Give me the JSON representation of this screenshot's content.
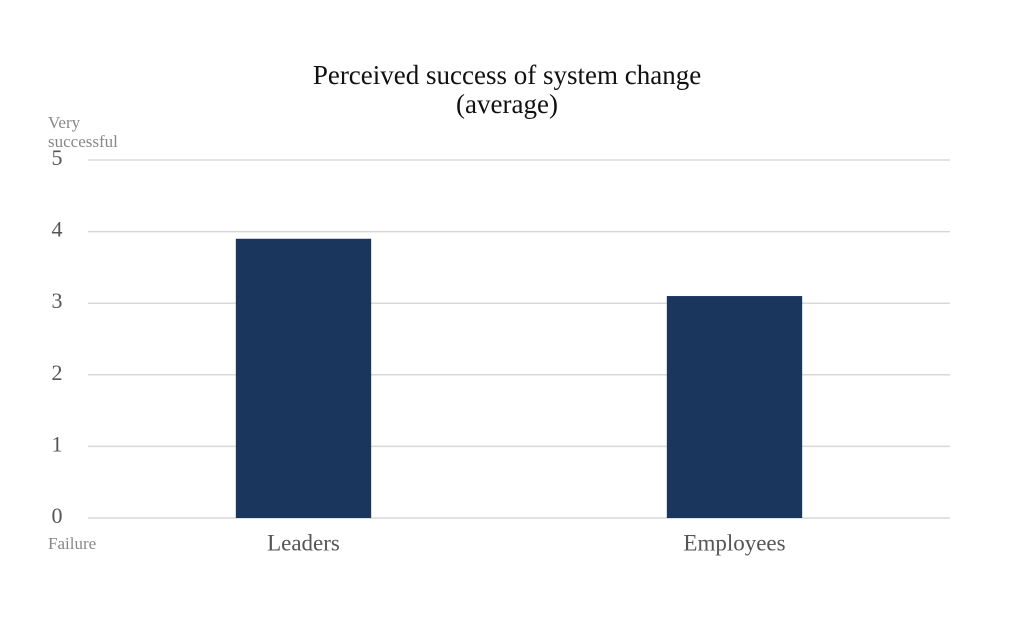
{
  "chart_data": {
    "type": "bar",
    "title": [
      "Perceived success of system change",
      "(average)"
    ],
    "annotations": {
      "top": "Very successful",
      "bottom": "Failure"
    },
    "categories": [
      "Leaders",
      "Employees"
    ],
    "values": [
      3.9,
      3.1
    ],
    "color": "#1b365d",
    "ylim": [
      0,
      5
    ],
    "yticks": [
      0,
      1,
      2,
      3,
      4,
      5
    ],
    "grid": true
  }
}
